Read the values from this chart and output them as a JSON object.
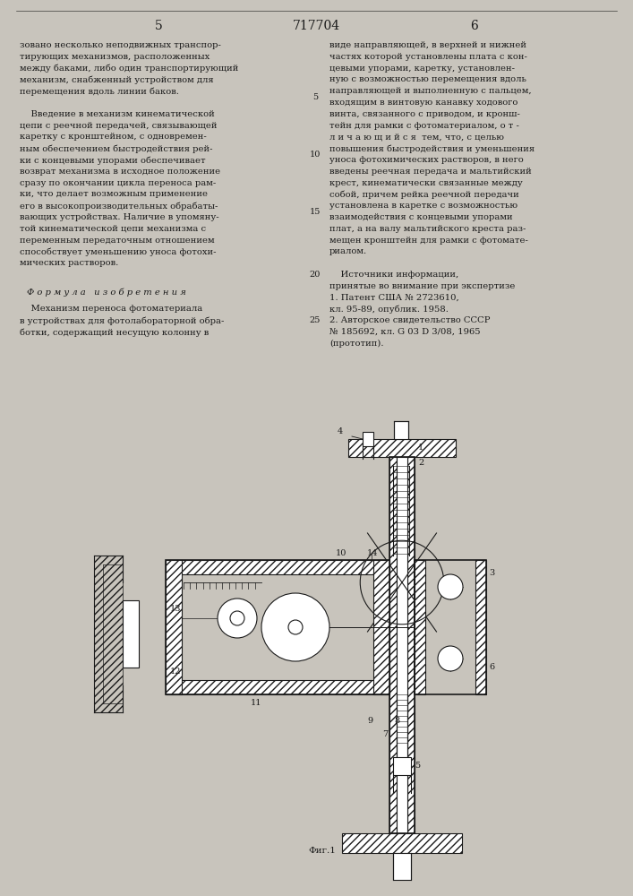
{
  "bg_color": "#c8c4bc",
  "page_color": "#ddd9d0",
  "title": "717704",
  "page_left": "5",
  "page_right": "6",
  "left_col": [
    "зовано несколько неподвижных транспор-",
    "тирующих механизмов, расположенных",
    "между баками, либо один транспортирующий",
    "механизм, снабженный устройством для",
    "перемещения вдоль линии баков.",
    "",
    "    Введение в механизм кинематической",
    "цепи с реечной передачей, связывающей",
    "каретку с кронштейном, с одновремен-",
    "ным обеспечением быстродействия рей-",
    "ки с концевыми упорами обеспечивает",
    "возврат механизма в исходное положение",
    "сразу по окончании цикла переноса рам-",
    "ки, что делает возможным применение",
    "его в высокопроизводительных обрабаты-",
    "вающих устройствах. Наличие в упомяну-",
    "той кинематической цепи механизма с",
    "переменным передаточным отношением",
    "способствует уменьшению уноса фотохи-",
    "мических растворов."
  ],
  "right_col": [
    "виде направляющей, в верхней и нижней",
    "частях которой установлены плата с кон-",
    "цевыми упорами, каретку, установлен-",
    "ную с возможностью перемещения вдоль",
    "направляющей и выполненную с пальцем,",
    "входящим в винтовую канавку ходового",
    "винта, связанного с приводом, и кронш-",
    "тейн для рамки с фотоматериалом, о т -",
    "л и ч а ю щ и й с я  тем, что, с целью",
    "повышения быстродействия и уменьшения",
    "уноса фотохимических растворов, в него",
    "введены реечная передача и мальтийский",
    "крест, кинематически связанные между",
    "собой, причем рейка реечной передачи",
    "установлена в каретке с возможностью",
    "взаимодействия с концевыми упорами",
    "плат, а на валу мальтийского креста раз-",
    "мещен кронштейн для рамки с фотомате-",
    "риалом."
  ],
  "formula_header": "Ф о р м у л а   и з о б р е т е н и я",
  "formula_text": [
    "    Механизм переноса фотоматериала",
    "в устройствах для фотолабораторной обра-",
    "ботки, содержащий несущую колонну в"
  ],
  "sources_header": "    Источники информации,",
  "sources": [
    "принятые во внимание при экспертизе",
    "1. Патент США № 2723610,",
    "кл. 95-89, опублик. 1958.",
    "2. Авторское свидетельство СССР",
    "№ 185692, кл. G 03 D 3/08, 1965",
    "(прототип)."
  ],
  "fig_caption": "Фиг.1",
  "ink": "#1a1a1a",
  "hatch_color": "#2a2a2a"
}
